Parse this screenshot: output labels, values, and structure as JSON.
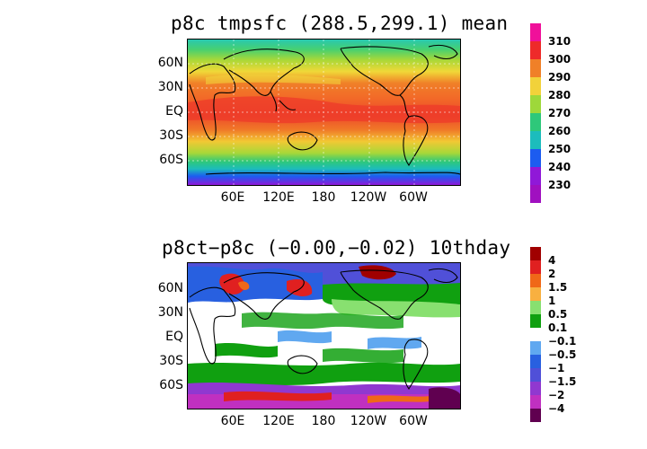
{
  "panels": [
    {
      "title": "p8c tmpsfc (288.5,299.1) mean",
      "lat_labels": [
        "60N",
        "30N",
        "EQ",
        "30S",
        "60S"
      ],
      "lon_labels": [
        "60E",
        "120E",
        "180",
        "120W",
        "60W"
      ],
      "colorbar": {
        "labels": [
          "310",
          "300",
          "290",
          "280",
          "270",
          "260",
          "250",
          "240",
          "230"
        ],
        "colors": [
          "#f0109a",
          "#ee2a2a",
          "#f08028",
          "#f2d23a",
          "#9ed83a",
          "#2ec87a",
          "#1cbcbc",
          "#1c5cf0",
          "#9018d8",
          "#a010c0"
        ]
      }
    },
    {
      "title": "p8ct−p8c (−0.00,−0.02) 10thday",
      "lat_labels": [
        "60N",
        "30N",
        "EQ",
        "30S",
        "60S"
      ],
      "lon_labels": [
        "60E",
        "120E",
        "180",
        "120W",
        "60W"
      ],
      "colorbar": {
        "labels": [
          "4",
          "2",
          "1.5",
          "1",
          "0.5",
          "0.1",
          "−0.1",
          "−0.5",
          "−1",
          "−1.5",
          "−2",
          "−4"
        ],
        "colors": [
          "#a00000",
          "#e02020",
          "#f06818",
          "#f8b040",
          "#88e070",
          "#10a010",
          "#ffffff",
          "#60a8f0",
          "#2860e0",
          "#5050d8",
          "#9038d0",
          "#c030c0",
          "#600050"
        ]
      }
    }
  ]
}
